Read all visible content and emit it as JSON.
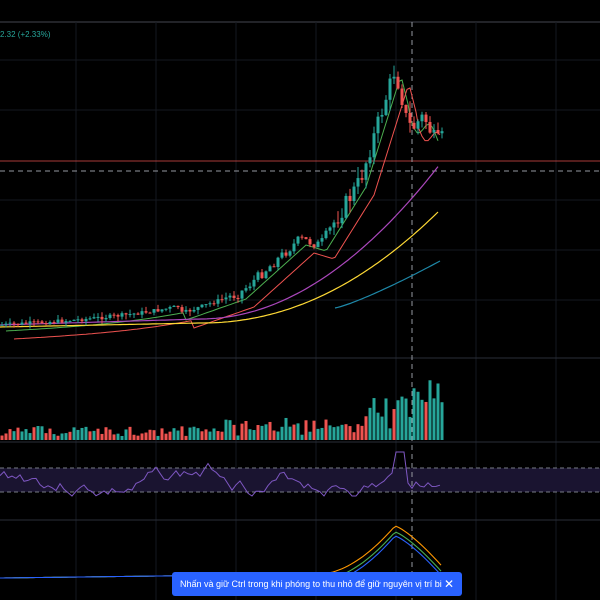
{
  "header": {
    "change_text": "2.32 (+2.33%)"
  },
  "toast": {
    "message": "Nhấn và giữ Ctrl trong khi phóng to thu nhỏ để giữ nguyên vị trí biểu đồ",
    "close_icon": "close-icon"
  },
  "colors": {
    "background": "#000000",
    "up": "#26a69a",
    "down": "#ef5350",
    "ma_fast": "#4caf50",
    "ma_mid": "#ef5350",
    "ma_slow": "#ab47bc",
    "ma_yellow": "#fdd835",
    "ma_cyan": "#26a69a",
    "rsi": "#7e57c2",
    "macd": "#ff9800",
    "signal": "#4caf50",
    "toast": "#2962ff"
  },
  "chart_data": {
    "type": "candlestick",
    "panes": [
      "price",
      "volume",
      "rsi",
      "macd"
    ],
    "grid": true,
    "crosshair": true
  }
}
